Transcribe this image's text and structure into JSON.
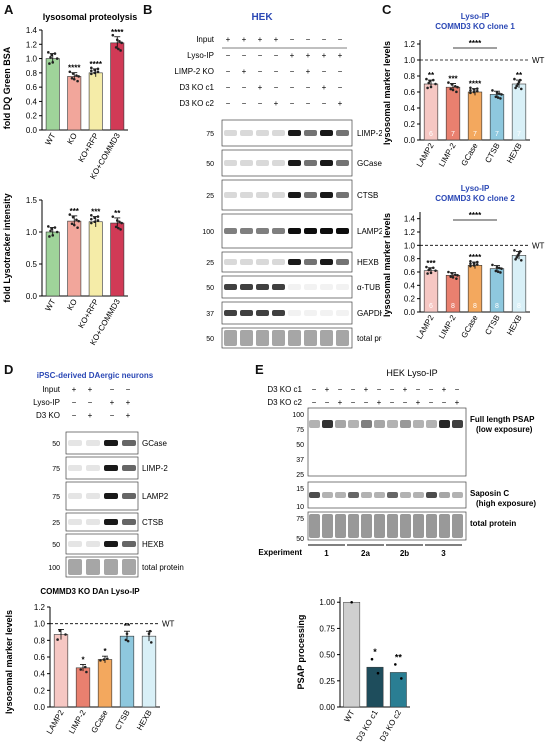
{
  "panels": {
    "A": {
      "letter": "A"
    },
    "B": {
      "letter": "B"
    },
    "C": {
      "letter": "C"
    },
    "D": {
      "letter": "D"
    },
    "E": {
      "letter": "E"
    }
  },
  "A_top": {
    "title": "lysosomal proteolysis",
    "ylabel": "fold DQ Green BSA",
    "categories": [
      "WT",
      "KO",
      "KO+RFP",
      "KO+COMMD3"
    ],
    "values": [
      1.0,
      0.75,
      0.8,
      1.22
    ],
    "sig": [
      "",
      "****",
      "****",
      "****"
    ],
    "colors": [
      "#9fd39a",
      "#f2a69b",
      "#f5eca8",
      "#d13a56"
    ],
    "yticks": [
      "0.0",
      "0.2",
      "0.4",
      "0.6",
      "0.8",
      "1.0",
      "1.2",
      "1.4"
    ],
    "ylim": [
      0,
      1.4
    ]
  },
  "A_bottom": {
    "ylabel": "fold Lysotracker intensity",
    "categories": [
      "WT",
      "KO",
      "KO+RFP",
      "KO+COMMD3"
    ],
    "values": [
      1.0,
      1.17,
      1.16,
      1.14
    ],
    "sig": [
      "",
      "***",
      "***",
      "**"
    ],
    "colors": [
      "#9fd39a",
      "#f2a69b",
      "#f5eca8",
      "#d13a56"
    ],
    "yticks": [
      "0.0",
      "0.5",
      "1.0",
      "1.5"
    ],
    "ylim": [
      0,
      1.5
    ]
  },
  "B": {
    "title": "HEK",
    "rows": [
      "Input",
      "Lyso-IP",
      "LIMP-2 KO",
      "D3 KO c1",
      "D3 KO c2"
    ],
    "signs": [
      [
        "+",
        "+",
        "+",
        "+",
        "−",
        "−",
        "−",
        "−"
      ],
      [
        "−",
        "−",
        "−",
        "−",
        "+",
        "+",
        "+",
        "+"
      ],
      [
        "−",
        "+",
        "−",
        "−",
        "−",
        "+",
        "−",
        "−"
      ],
      [
        "−",
        "−",
        "+",
        "−",
        "−",
        "−",
        "+",
        "−"
      ],
      [
        "−",
        "−",
        "−",
        "+",
        "−",
        "−",
        "−",
        "+"
      ]
    ],
    "blots": [
      {
        "label": "LIMP-2",
        "mw": [
          "75"
        ]
      },
      {
        "label": "GCase",
        "mw": [
          "50"
        ]
      },
      {
        "label": "CTSB",
        "mw": [
          "25"
        ]
      },
      {
        "label": "LAMP2",
        "mw": [
          "100"
        ]
      },
      {
        "label": "HEXB",
        "mw": [
          "25"
        ]
      },
      {
        "label": "α-TUB",
        "mw": [
          "50"
        ]
      },
      {
        "label": "GAPDH",
        "mw": [
          "37"
        ]
      },
      {
        "label": "total protein",
        "mw": [
          "50"
        ]
      }
    ]
  },
  "C1": {
    "title1": "Lyso-IP",
    "title2": "COMMD3 KO clone 1",
    "categories": [
      "LAMP2",
      "LIMP-2",
      "GCase",
      "CTSB",
      "HEXB"
    ],
    "values": [
      0.7,
      0.66,
      0.6,
      0.57,
      0.7
    ],
    "n": [
      "6",
      "7",
      "7",
      "7",
      "7"
    ],
    "sig": [
      "**",
      "***",
      "****",
      "",
      "**"
    ],
    "colors": [
      "#f6c7c3",
      "#e9806f",
      "#f3a85e",
      "#8ec8de",
      "#d9f0f7"
    ],
    "yticks": [
      "0.0",
      "0.2",
      "0.4",
      "0.6",
      "0.8",
      "1.0",
      "1.2"
    ],
    "ylim": [
      0,
      1.25
    ],
    "wt": "WT",
    "bracket_sig": "****"
  },
  "C2": {
    "title1": "Lyso-IP",
    "title2": "COMMD3 KO clone 2",
    "categories": [
      "LAMP2",
      "LIMP-2",
      "GCase",
      "CTSB",
      "HEXB"
    ],
    "values": [
      0.62,
      0.55,
      0.7,
      0.65,
      0.85
    ],
    "n": [
      "6",
      "8",
      "8",
      "8",
      "8"
    ],
    "sig": [
      "***",
      "",
      "****",
      "",
      ""
    ],
    "colors": [
      "#f6c7c3",
      "#e9806f",
      "#f3a85e",
      "#8ec8de",
      "#d9f0f7"
    ],
    "yticks": [
      "0.0",
      "0.2",
      "0.4",
      "0.6",
      "0.8",
      "1.0",
      "1.2",
      "1.4"
    ],
    "ylim": [
      0,
      1.5
    ],
    "wt": "WT",
    "bracket_sig": "****"
  },
  "D": {
    "title": "iPSC-derived DAergic neurons",
    "rows": [
      "Input",
      "Lyso-IP",
      "D3 KO"
    ],
    "signs": [
      [
        "+",
        "+",
        "−",
        "−"
      ],
      [
        "−",
        "−",
        "+",
        "+"
      ],
      [
        "−",
        "+",
        "−",
        "+"
      ]
    ],
    "blots": [
      {
        "label": "GCase",
        "mw": "50"
      },
      {
        "label": "LIMP-2",
        "mw": "75"
      },
      {
        "label": "LAMP2",
        "mw": "75"
      },
      {
        "label": "CTSB",
        "mw": "25"
      },
      {
        "label": "HEXB",
        "mw": "50"
      },
      {
        "label": "total protein",
        "mw": "100"
      }
    ],
    "chart_title": "COMMD3 KO DAn Lyso-IP",
    "ylabel": "lysosomal marker levels",
    "categories": [
      "LAMP2",
      "LIMP-2",
      "GCase",
      "CTSB",
      "HEXB"
    ],
    "values": [
      0.87,
      0.47,
      0.57,
      0.85,
      0.85
    ],
    "sig": [
      "",
      "*",
      "*",
      "**",
      ""
    ],
    "colors": [
      "#f6c7c3",
      "#e9806f",
      "#f3a85e",
      "#8ec8de",
      "#d9f0f7"
    ],
    "yticks": [
      "0.0",
      "0.2",
      "0.4",
      "0.6",
      "0.8",
      "1.0",
      "1.2"
    ],
    "wt": "WT"
  },
  "E": {
    "title": "HEK Lyso-IP",
    "rows": [
      "D3 KO c1",
      "D3 KO c2"
    ],
    "signs": [
      [
        "−",
        "+",
        "−",
        "−",
        "+",
        "−",
        "−",
        "+",
        "−",
        "−",
        "+",
        "−"
      ],
      [
        "−",
        "−",
        "+",
        "−",
        "−",
        "+",
        "−",
        "−",
        "+",
        "−",
        "−",
        "+"
      ]
    ],
    "blots": [
      {
        "label1": "Full length PSAP",
        "label2": "(low exposure)",
        "mw": [
          "100",
          "75",
          "50",
          "37",
          "25"
        ]
      },
      {
        "label1": "Saposin C",
        "label2": "(high exposure)",
        "mw": [
          "15",
          "10"
        ]
      },
      {
        "label1": "total protein",
        "label2": "",
        "mw": [
          "75",
          "50"
        ]
      }
    ],
    "experiment_label": "Experiment",
    "experiments": [
      "1",
      "2a",
      "2b",
      "3"
    ]
  },
  "chart_data": [
    {
      "type": "bar",
      "title": "lysosomal proteolysis",
      "ylabel": "fold DQ Green BSA",
      "categories": [
        "WT",
        "KO",
        "KO+RFP",
        "KO+COMMD3"
      ],
      "values": [
        1.0,
        0.75,
        0.8,
        1.22
      ],
      "ylim": [
        0,
        1.4
      ]
    },
    {
      "type": "bar",
      "ylabel": "fold Lysotracker intensity",
      "categories": [
        "WT",
        "KO",
        "KO+RFP",
        "KO+COMMD3"
      ],
      "values": [
        1.0,
        1.17,
        1.16,
        1.14
      ],
      "ylim": [
        0,
        1.5
      ]
    },
    {
      "type": "bar",
      "title": "Lyso-IP COMMD3 KO clone 1",
      "ylabel": "lysosomal marker levels",
      "categories": [
        "LAMP2",
        "LIMP-2",
        "GCase",
        "CTSB",
        "HEXB"
      ],
      "values": [
        0.7,
        0.66,
        0.6,
        0.57,
        0.7
      ],
      "ylim": [
        0,
        1.25
      ]
    },
    {
      "type": "bar",
      "title": "Lyso-IP COMMD3 KO clone 2",
      "ylabel": "lysosomal marker levels",
      "categories": [
        "LAMP2",
        "LIMP-2",
        "GCase",
        "CTSB",
        "HEXB"
      ],
      "values": [
        0.62,
        0.55,
        0.7,
        0.65,
        0.85
      ],
      "ylim": [
        0,
        1.5
      ]
    },
    {
      "type": "bar",
      "title": "COMMD3 KO DAn Lyso-IP",
      "ylabel": "lysosomal marker levels",
      "categories": [
        "LAMP2",
        "LIMP-2",
        "GCase",
        "CTSB",
        "HEXB"
      ],
      "values": [
        0.87,
        0.47,
        0.57,
        0.85,
        0.85
      ],
      "ylim": [
        0,
        1.2
      ]
    },
    {
      "type": "bar",
      "ylabel": "PSAP processing",
      "categories": [
        "WT",
        "D3 KO c1",
        "D3 KO c2"
      ],
      "values": [
        1.0,
        0.38,
        0.33
      ],
      "ylim": [
        0,
        1.0
      ]
    }
  ],
  "E_chart": {
    "ylabel": "PSAP processing",
    "categories": [
      "WT",
      "D3 KO c1",
      "D3 KO c2"
    ],
    "values": [
      1.0,
      0.38,
      0.33
    ],
    "sig": [
      "",
      "*",
      "**"
    ],
    "colors": [
      "#cfcfcf",
      "#1e4d5c",
      "#2a7e93"
    ],
    "yticks": [
      "0.00",
      "0.25",
      "0.50",
      "0.75",
      "1.00"
    ]
  }
}
